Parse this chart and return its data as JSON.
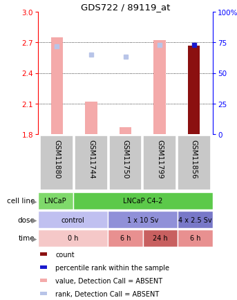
{
  "title": "GDS722 / 89119_at",
  "samples": [
    "GSM11880",
    "GSM11744",
    "GSM11750",
    "GSM11799",
    "GSM11856"
  ],
  "ylim_left": [
    1.8,
    3.0
  ],
  "ylim_right": [
    0,
    100
  ],
  "yticks_left": [
    1.8,
    2.1,
    2.4,
    2.7,
    3.0
  ],
  "yticks_right": [
    0,
    25,
    50,
    75,
    100
  ],
  "ytick_labels_right": [
    "0",
    "25",
    "50",
    "75",
    "100%"
  ],
  "bar_values": [
    2.75,
    2.12,
    1.87,
    2.72,
    2.67
  ],
  "bar_colors": [
    "#F4AAAA",
    "#F4AAAA",
    "#F4AAAA",
    "#F4AAAA",
    "#8B1010"
  ],
  "rank_values": [
    72,
    65,
    63,
    73,
    73
  ],
  "rank_colors": [
    "#B8C4E8",
    "#B8C4E8",
    "#B8C4E8",
    "#B8C4E8",
    "#1A1ACD"
  ],
  "cell_line_data": [
    {
      "label": "LNCaP",
      "start": 0,
      "end": 1,
      "color": "#7FD96B"
    },
    {
      "label": "LNCaP C4-2",
      "start": 1,
      "end": 5,
      "color": "#5CC94A"
    }
  ],
  "dose_data": [
    {
      "label": "control",
      "start": 0,
      "end": 2,
      "color": "#C0C0F0"
    },
    {
      "label": "1 x 10 Sv",
      "start": 2,
      "end": 4,
      "color": "#9090D8"
    },
    {
      "label": "4 x 2.5 Sv",
      "start": 4,
      "end": 5,
      "color": "#7878C8"
    }
  ],
  "time_data": [
    {
      "label": "0 h",
      "start": 0,
      "end": 2,
      "color": "#F5C8C8"
    },
    {
      "label": "6 h",
      "start": 2,
      "end": 3,
      "color": "#E89090"
    },
    {
      "label": "24 h",
      "start": 3,
      "end": 4,
      "color": "#C86060"
    },
    {
      "label": "6 h",
      "start": 4,
      "end": 5,
      "color": "#E89090"
    }
  ],
  "row_labels": [
    "cell line",
    "dose",
    "time"
  ],
  "legend_items": [
    {
      "color": "#8B1010",
      "label": "count"
    },
    {
      "color": "#1A1ACD",
      "label": "percentile rank within the sample"
    },
    {
      "color": "#F4AAAA",
      "label": "value, Detection Call = ABSENT"
    },
    {
      "color": "#B8C4E8",
      "label": "rank, Detection Call = ABSENT"
    }
  ],
  "grid_yticks": [
    2.1,
    2.4,
    2.7
  ],
  "n_samples": 5
}
